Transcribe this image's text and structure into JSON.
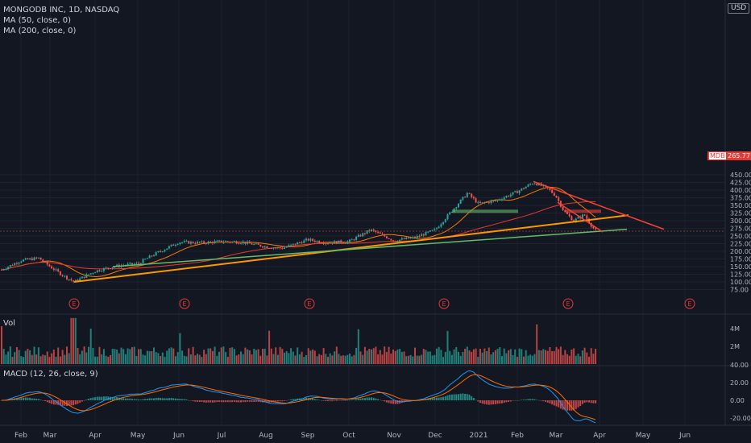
{
  "header": {
    "title": "MONGODB INC, 1D, NASDAQ",
    "indicators": [
      "MA (50, close, 0)",
      "MA (200, close, 0)"
    ],
    "currency": "USD"
  },
  "volume_pane": {
    "label": "Vol"
  },
  "macd_pane": {
    "label": "MACD (12, 26, close, 9)"
  },
  "price_tag": {
    "symbol": "MDB",
    "value": "265.77"
  },
  "colors": {
    "background": "#131722",
    "up": "#26a69a",
    "down": "#ef5350",
    "ma50": "#f57c00",
    "ma200": "#e53935",
    "trend_orange": "#ff9800",
    "trend_green": "#66bb6a",
    "trend_red": "#f44336",
    "macd_line": "#2196f3",
    "signal_line": "#ff6d00",
    "earnings": "#e53935"
  },
  "chart_data": [
    {
      "type": "candlestick",
      "symbol": "MONGODB INC",
      "interval": "1D",
      "exchange": "NASDAQ",
      "x_ticks": [
        "Feb",
        "Mar",
        "Apr",
        "May",
        "Jun",
        "Jul",
        "Aug",
        "Sep",
        "Oct",
        "Nov",
        "Dec",
        "2021",
        "Feb",
        "Mar",
        "Apr",
        "May",
        "Jun"
      ],
      "y_ticks": [
        75,
        100,
        125,
        150,
        175,
        200,
        225,
        250,
        275,
        300,
        325,
        350,
        375,
        400,
        425,
        450
      ],
      "ylim": [
        75,
        450
      ],
      "last_price": 265.77,
      "approx_monthly_close": [
        {
          "x": "Feb 2020",
          "y": 170
        },
        {
          "x": "Mar 2020",
          "y": 120
        },
        {
          "x": "Apr 2020",
          "y": 135
        },
        {
          "x": "May 2020",
          "y": 155
        },
        {
          "x": "Jun 2020",
          "y": 225
        },
        {
          "x": "Jul 2020",
          "y": 232
        },
        {
          "x": "Aug 2020",
          "y": 232
        },
        {
          "x": "Sep 2020",
          "y": 230
        },
        {
          "x": "Oct 2020",
          "y": 230
        },
        {
          "x": "Nov 2020",
          "y": 250
        },
        {
          "x": "Dec 2020",
          "y": 365
        },
        {
          "x": "Jan 2021",
          "y": 370
        },
        {
          "x": "Feb 2021",
          "y": 405
        },
        {
          "x": "Mar 2021",
          "y": 266
        }
      ],
      "earnings_markers": [
        "E",
        "E",
        "E",
        "E",
        "E",
        "E"
      ]
    },
    {
      "type": "bar",
      "name": "Vol",
      "y_ticks": [
        "4M",
        "2M"
      ]
    },
    {
      "type": "line",
      "name": "MACD (12, 26, close, 9)",
      "y_ticks": [
        "40.00",
        "20.00",
        "0.00",
        "-20.00"
      ]
    }
  ]
}
